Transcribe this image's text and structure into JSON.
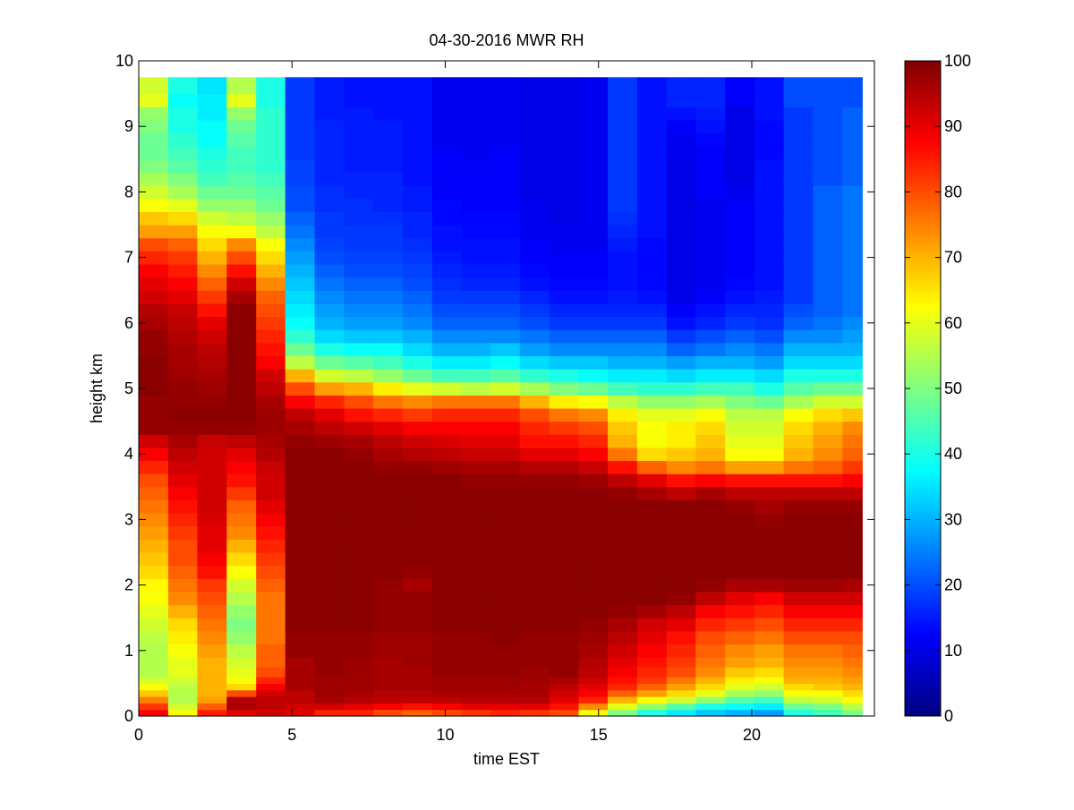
{
  "chart_data": {
    "type": "heatmap",
    "title": "04-30-2016 MWR RH",
    "xlabel": "time EST",
    "ylabel": "height km",
    "xlim": [
      0,
      24
    ],
    "ylim": [
      0,
      10
    ],
    "x_ticks": [
      0,
      5,
      10,
      15,
      20
    ],
    "x_tick_labels": [
      "0",
      "5",
      "10",
      "15",
      "20"
    ],
    "y_ticks": [
      0,
      1,
      2,
      3,
      4,
      5,
      6,
      7,
      8,
      9,
      10
    ],
    "y_tick_labels": [
      "0",
      "1",
      "2",
      "3",
      "4",
      "5",
      "6",
      "7",
      "8",
      "9",
      "10"
    ],
    "colormap": "jet",
    "colorbar": {
      "min": 0,
      "max": 100,
      "ticks": [
        0,
        10,
        20,
        30,
        40,
        50,
        60,
        70,
        80,
        90,
        100
      ],
      "tick_labels": [
        "0",
        "10",
        "20",
        "30",
        "40",
        "50",
        "60",
        "70",
        "80",
        "90",
        "100"
      ]
    },
    "grid": false,
    "time_hours": [
      0.0,
      0.96,
      1.91,
      2.87,
      3.83,
      4.78,
      5.74,
      6.7,
      7.65,
      8.61,
      9.57,
      10.52,
      11.48,
      12.43,
      13.39,
      14.35,
      15.3,
      16.26,
      17.22,
      18.17,
      19.13,
      20.09,
      21.04,
      22.0,
      22.96
    ],
    "cell_width_hours": 1.0,
    "data_extent_hours": [
      0,
      23.6
    ],
    "height_km": [
      0.0,
      0.1,
      0.2,
      0.3,
      0.4,
      0.5,
      0.6,
      0.75,
      0.9,
      1.1,
      1.3,
      1.5,
      1.7,
      1.9,
      2.1,
      2.3,
      2.5,
      2.7,
      2.9,
      3.1,
      3.3,
      3.5,
      3.7,
      3.9,
      4.1,
      4.3,
      4.5,
      4.7,
      4.9,
      5.1,
      5.3,
      5.5,
      5.7,
      5.9,
      6.1,
      6.3,
      6.5,
      6.7,
      6.9,
      7.1,
      7.3,
      7.5,
      7.7,
      7.9,
      8.1,
      8.3,
      8.5,
      8.7,
      8.9,
      9.1,
      9.3,
      9.5,
      9.75
    ],
    "rh_percent_columns": [
      [
        88,
        82,
        75,
        68,
        62,
        58,
        55,
        55,
        55,
        56,
        58,
        60,
        62,
        63,
        66,
        68,
        70,
        72,
        74,
        76,
        78,
        80,
        84,
        88,
        92,
        98,
        98,
        98,
        99,
        99,
        99,
        98,
        98,
        96,
        95,
        92,
        90,
        88,
        84,
        80,
        72,
        68,
        62,
        58,
        54,
        50,
        48,
        48,
        50,
        52,
        60,
        58,
        55
      ],
      [
        62,
        58,
        55,
        55,
        56,
        58,
        60,
        60,
        62,
        64,
        66,
        70,
        74,
        76,
        78,
        80,
        80,
        82,
        84,
        86,
        88,
        90,
        92,
        94,
        96,
        98,
        99,
        98,
        98,
        97,
        96,
        96,
        95,
        94,
        93,
        90,
        88,
        85,
        82,
        78,
        72,
        66,
        60,
        54,
        50,
        46,
        44,
        42,
        40,
        40,
        38,
        40,
        42
      ],
      [
        85,
        78,
        72,
        70,
        70,
        70,
        70,
        70,
        72,
        74,
        76,
        78,
        80,
        82,
        86,
        88,
        90,
        90,
        91,
        92,
        92,
        92,
        92,
        92,
        93,
        98,
        99,
        98,
        97,
        96,
        95,
        94,
        92,
        90,
        86,
        82,
        78,
        74,
        70,
        66,
        62,
        58,
        52,
        48,
        44,
        42,
        40,
        38,
        38,
        36,
        36,
        35,
        35
      ],
      [
        90,
        96,
        95,
        80,
        66,
        62,
        60,
        58,
        56,
        52,
        50,
        52,
        55,
        58,
        62,
        66,
        70,
        74,
        76,
        78,
        82,
        86,
        88,
        90,
        94,
        98,
        99,
        99,
        99,
        99,
        99,
        99,
        99,
        99,
        99,
        96,
        92,
        86,
        80,
        74,
        62,
        56,
        52,
        48,
        46,
        44,
        44,
        46,
        48,
        52,
        60,
        55,
        48
      ],
      [
        92,
        94,
        94,
        92,
        88,
        84,
        80,
        78,
        78,
        76,
        76,
        76,
        76,
        78,
        80,
        82,
        84,
        86,
        88,
        90,
        92,
        92,
        93,
        95,
        96,
        97,
        97,
        96,
        94,
        92,
        88,
        86,
        84,
        82,
        80,
        78,
        74,
        70,
        66,
        62,
        56,
        52,
        48,
        46,
        44,
        42,
        42,
        42,
        42,
        42,
        40,
        40,
        38
      ],
      [
        90,
        92,
        94,
        94,
        96,
        96,
        96,
        96,
        98,
        98,
        99,
        99,
        99,
        99,
        99,
        99,
        99,
        99,
        99,
        99,
        99,
        99,
        99,
        99,
        98,
        96,
        94,
        88,
        80,
        70,
        56,
        48,
        42,
        38,
        36,
        34,
        32,
        30,
        28,
        26,
        24,
        22,
        20,
        20,
        19,
        19,
        18,
        18,
        18,
        18,
        18,
        18,
        18
      ],
      [
        84,
        92,
        96,
        97,
        97,
        97,
        98,
        98,
        98,
        98,
        99,
        99,
        99,
        99,
        99,
        99,
        99,
        99,
        99,
        99,
        99,
        99,
        99,
        99,
        97,
        94,
        90,
        84,
        72,
        58,
        48,
        40,
        34,
        30,
        28,
        26,
        24,
        22,
        20,
        19,
        18,
        18,
        17,
        17,
        16,
        16,
        16,
        16,
        16,
        15,
        15,
        15,
        15
      ],
      [
        84,
        90,
        95,
        96,
        97,
        97,
        97,
        97,
        98,
        98,
        99,
        99,
        99,
        99,
        99,
        99,
        99,
        99,
        99,
        99,
        99,
        99,
        99,
        98,
        96,
        92,
        86,
        80,
        70,
        56,
        46,
        38,
        32,
        28,
        26,
        24,
        22,
        20,
        19,
        18,
        18,
        17,
        17,
        16,
        16,
        15,
        15,
        15,
        15,
        15,
        14,
        14,
        14
      ],
      [
        80,
        88,
        94,
        95,
        96,
        96,
        96,
        96,
        97,
        97,
        98,
        98,
        98,
        98,
        99,
        99,
        99,
        99,
        99,
        99,
        99,
        99,
        98,
        96,
        94,
        90,
        84,
        76,
        64,
        52,
        44,
        38,
        32,
        28,
        26,
        24,
        22,
        20,
        19,
        18,
        18,
        17,
        16,
        16,
        16,
        15,
        15,
        15,
        15,
        14,
        14,
        14,
        14
      ],
      [
        78,
        86,
        94,
        95,
        96,
        96,
        96,
        97,
        97,
        97,
        98,
        98,
        98,
        96,
        98,
        99,
        99,
        99,
        99,
        99,
        99,
        99,
        98,
        95,
        92,
        88,
        82,
        74,
        60,
        48,
        40,
        34,
        30,
        26,
        24,
        22,
        20,
        19,
        18,
        17,
        16,
        16,
        15,
        15,
        14,
        14,
        14,
        14,
        14,
        14,
        14,
        14,
        14
      ],
      [
        80,
        88,
        94,
        96,
        97,
        97,
        98,
        98,
        98,
        98,
        99,
        99,
        99,
        99,
        99,
        99,
        99,
        99,
        99,
        99,
        99,
        99,
        97,
        94,
        91,
        88,
        84,
        76,
        58,
        44,
        36,
        30,
        26,
        22,
        20,
        18,
        17,
        16,
        15,
        14,
        14,
        13,
        13,
        12,
        12,
        12,
        12,
        11,
        11,
        11,
        11,
        11,
        11
      ],
      [
        82,
        90,
        95,
        96,
        97,
        97,
        98,
        98,
        98,
        98,
        99,
        99,
        99,
        99,
        99,
        99,
        99,
        99,
        99,
        99,
        99,
        98,
        96,
        93,
        90,
        88,
        84,
        76,
        56,
        44,
        36,
        30,
        26,
        22,
        20,
        18,
        16,
        15,
        14,
        14,
        13,
        13,
        12,
        12,
        12,
        12,
        11,
        11,
        11,
        11,
        11,
        11,
        11
      ],
      [
        84,
        90,
        95,
        96,
        97,
        97,
        98,
        98,
        98,
        99,
        99,
        99,
        99,
        99,
        99,
        99,
        99,
        99,
        99,
        99,
        99,
        98,
        96,
        93,
        90,
        88,
        84,
        76,
        58,
        46,
        38,
        32,
        26,
        22,
        20,
        18,
        16,
        15,
        14,
        14,
        13,
        13,
        12,
        12,
        12,
        12,
        12,
        11,
        11,
        11,
        11,
        11,
        11
      ],
      [
        82,
        90,
        95,
        96,
        96,
        97,
        97,
        98,
        98,
        98,
        99,
        99,
        99,
        99,
        99,
        99,
        99,
        99,
        99,
        99,
        99,
        98,
        95,
        90,
        86,
        84,
        80,
        70,
        54,
        42,
        34,
        28,
        24,
        20,
        18,
        16,
        14,
        13,
        12,
        12,
        11,
        11,
        11,
        10,
        10,
        10,
        10,
        10,
        10,
        10,
        10,
        10,
        10
      ],
      [
        80,
        86,
        90,
        92,
        94,
        96,
        98,
        98,
        98,
        98,
        99,
        99,
        99,
        99,
        99,
        99,
        99,
        99,
        99,
        99,
        99,
        98,
        95,
        90,
        86,
        82,
        76,
        64,
        50,
        40,
        32,
        26,
        22,
        18,
        16,
        14,
        13,
        12,
        12,
        11,
        11,
        10,
        10,
        10,
        10,
        10,
        10,
        10,
        10,
        10,
        10,
        10,
        10
      ],
      [
        62,
        74,
        84,
        88,
        90,
        92,
        94,
        95,
        96,
        97,
        98,
        99,
        99,
        99,
        99,
        99,
        99,
        99,
        99,
        99,
        99,
        97,
        93,
        88,
        84,
        80,
        74,
        62,
        48,
        38,
        32,
        26,
        22,
        18,
        16,
        14,
        13,
        12,
        12,
        11,
        11,
        11,
        11,
        11,
        11,
        11,
        11,
        11,
        11,
        11,
        11,
        11,
        11
      ],
      [
        50,
        60,
        70,
        78,
        84,
        86,
        88,
        90,
        92,
        94,
        96,
        98,
        99,
        99,
        99,
        99,
        99,
        99,
        99,
        99,
        98,
        94,
        86,
        76,
        70,
        68,
        64,
        56,
        44,
        36,
        30,
        26,
        22,
        18,
        16,
        15,
        14,
        14,
        14,
        15,
        16,
        17,
        18,
        18,
        18,
        18,
        18,
        18,
        18,
        18,
        18,
        18,
        18
      ],
      [
        40,
        52,
        62,
        72,
        78,
        82,
        84,
        86,
        88,
        90,
        92,
        96,
        99,
        99,
        99,
        99,
        99,
        99,
        99,
        99,
        96,
        90,
        78,
        66,
        62,
        62,
        60,
        52,
        42,
        36,
        30,
        26,
        22,
        18,
        16,
        14,
        13,
        13,
        13,
        13,
        14,
        14,
        14,
        14,
        14,
        14,
        14,
        14,
        14,
        14,
        14,
        14,
        15
      ],
      [
        36,
        46,
        58,
        66,
        72,
        76,
        80,
        82,
        84,
        86,
        90,
        94,
        98,
        99,
        99,
        99,
        99,
        99,
        99,
        99,
        94,
        86,
        74,
        68,
        64,
        64,
        60,
        52,
        42,
        34,
        28,
        22,
        18,
        14,
        12,
        10,
        10,
        10,
        10,
        10,
        10,
        10,
        10,
        10,
        10,
        10,
        11,
        11,
        12,
        14,
        16,
        16,
        16
      ],
      [
        32,
        40,
        52,
        60,
        66,
        70,
        74,
        76,
        78,
        80,
        84,
        88,
        94,
        98,
        99,
        99,
        99,
        99,
        99,
        99,
        96,
        88,
        76,
        70,
        68,
        66,
        62,
        54,
        44,
        36,
        30,
        24,
        20,
        16,
        14,
        12,
        11,
        11,
        11,
        11,
        11,
        11,
        11,
        12,
        12,
        12,
        12,
        13,
        14,
        15,
        16,
        16,
        16
      ],
      [
        30,
        38,
        46,
        54,
        60,
        64,
        68,
        72,
        74,
        78,
        82,
        86,
        90,
        96,
        99,
        99,
        99,
        99,
        99,
        98,
        94,
        86,
        72,
        62,
        60,
        58,
        56,
        50,
        44,
        36,
        30,
        26,
        22,
        18,
        16,
        14,
        13,
        12,
        12,
        12,
        12,
        12,
        12,
        11,
        10,
        10,
        10,
        10,
        10,
        10,
        12,
        12,
        12
      ],
      [
        28,
        36,
        44,
        52,
        58,
        62,
        66,
        70,
        72,
        76,
        80,
        84,
        88,
        96,
        99,
        99,
        99,
        99,
        98,
        96,
        94,
        86,
        72,
        62,
        60,
        58,
        56,
        48,
        40,
        34,
        28,
        24,
        20,
        17,
        16,
        15,
        14,
        14,
        14,
        14,
        14,
        14,
        14,
        14,
        14,
        14,
        13,
        13,
        13,
        14,
        14,
        14,
        14
      ],
      [
        40,
        48,
        56,
        62,
        66,
        70,
        72,
        74,
        76,
        80,
        84,
        88,
        92,
        97,
        99,
        99,
        99,
        99,
        99,
        98,
        94,
        86,
        76,
        70,
        68,
        66,
        62,
        54,
        46,
        40,
        34,
        30,
        26,
        22,
        20,
        18,
        18,
        18,
        18,
        18,
        18,
        18,
        18,
        18,
        18,
        18,
        18,
        18,
        18,
        18,
        20,
        20,
        20
      ],
      [
        44,
        50,
        58,
        62,
        68,
        70,
        72,
        74,
        76,
        80,
        84,
        88,
        92,
        97,
        99,
        99,
        99,
        99,
        99,
        98,
        94,
        86,
        78,
        74,
        72,
        70,
        66,
        58,
        48,
        40,
        34,
        30,
        26,
        24,
        22,
        22,
        22,
        22,
        22,
        22,
        22,
        22,
        22,
        22,
        20,
        20,
        20,
        20,
        20,
        20,
        20,
        20,
        20
      ],
      [
        50,
        56,
        62,
        66,
        70,
        72,
        74,
        76,
        78,
        80,
        84,
        88,
        92,
        96,
        99,
        99,
        99,
        99,
        99,
        98,
        94,
        88,
        82,
        78,
        76,
        74,
        68,
        58,
        48,
        40,
        34,
        30,
        28,
        26,
        24,
        24,
        24,
        24,
        24,
        24,
        24,
        24,
        24,
        24,
        22,
        22,
        22,
        22,
        22,
        22,
        20,
        20,
        20
      ]
    ]
  }
}
